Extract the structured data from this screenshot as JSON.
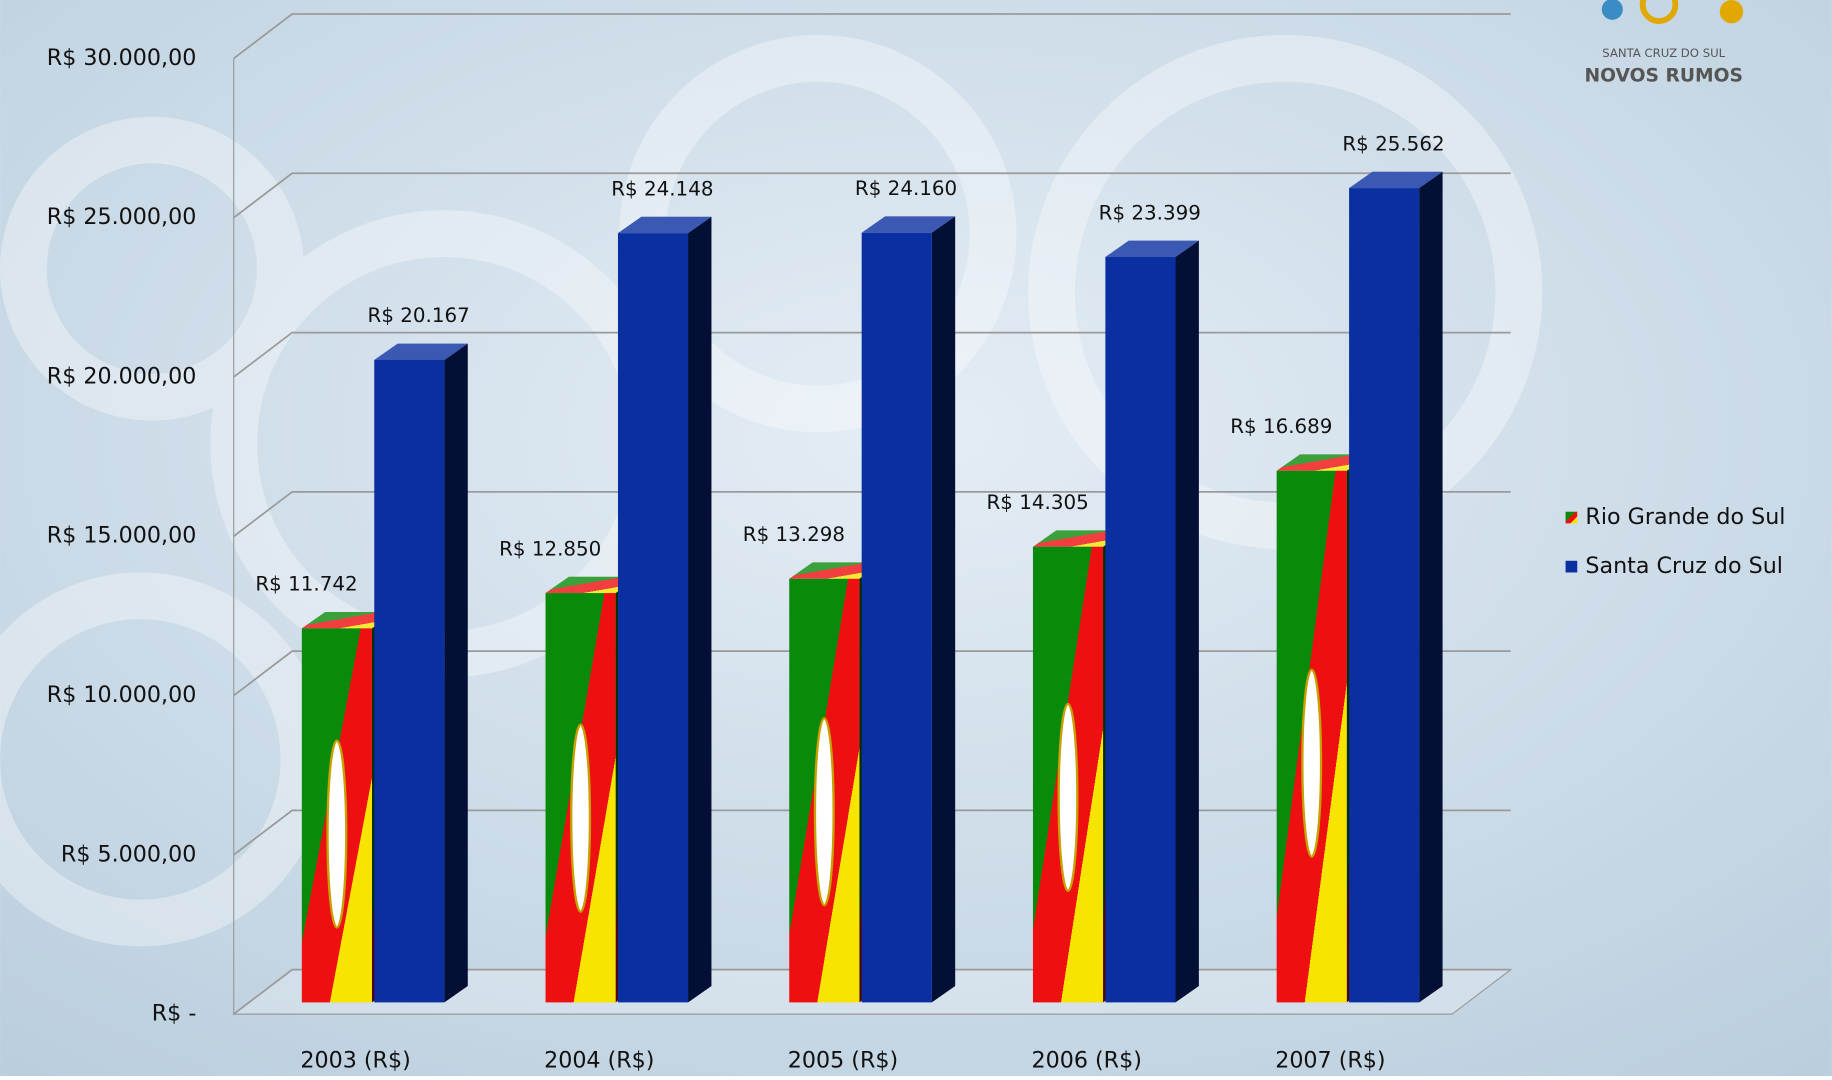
{
  "chart_data": {
    "type": "bar",
    "categories": [
      "2003 (R$)",
      "2004 (R$)",
      "2005 (R$)",
      "2006 (R$)",
      "2007 (R$)"
    ],
    "series": [
      {
        "name": "Rio Grande do Sul",
        "colors": [
          "#0a8a0a",
          "#ee1010",
          "#f7e400"
        ],
        "values": [
          11742,
          12850,
          13298,
          14305,
          16689
        ],
        "value_labels": [
          "R$ 11.742",
          "R$ 12.850",
          "R$ 13.298",
          "R$ 14.305",
          "R$ 16.689"
        ]
      },
      {
        "name": "Santa Cruz do Sul",
        "color": "#0a2fa0",
        "values": [
          20167,
          24148,
          24160,
          23399,
          25562
        ],
        "value_labels": [
          "R$ 20.167",
          "R$ 24.148",
          "R$ 24.160",
          "R$ 23.399",
          "R$ 25.562"
        ]
      }
    ],
    "ylim": [
      0,
      30000
    ],
    "yticks": [
      {
        "value": 0,
        "label": "R$ -"
      },
      {
        "value": 5000,
        "label": "R$ 5.000,00"
      },
      {
        "value": 10000,
        "label": "R$ 10.000,00"
      },
      {
        "value": 15000,
        "label": "R$ 15.000,00"
      },
      {
        "value": 20000,
        "label": "R$ 20.000,00"
      },
      {
        "value": 25000,
        "label": "R$ 25.000,00"
      },
      {
        "value": 30000,
        "label": "R$ 30.000,00"
      }
    ],
    "grid": true,
    "legend": "right"
  },
  "logo": {
    "line1": "SANTA CRUZ DO SUL",
    "line2": "NOVOS RUMOS"
  }
}
